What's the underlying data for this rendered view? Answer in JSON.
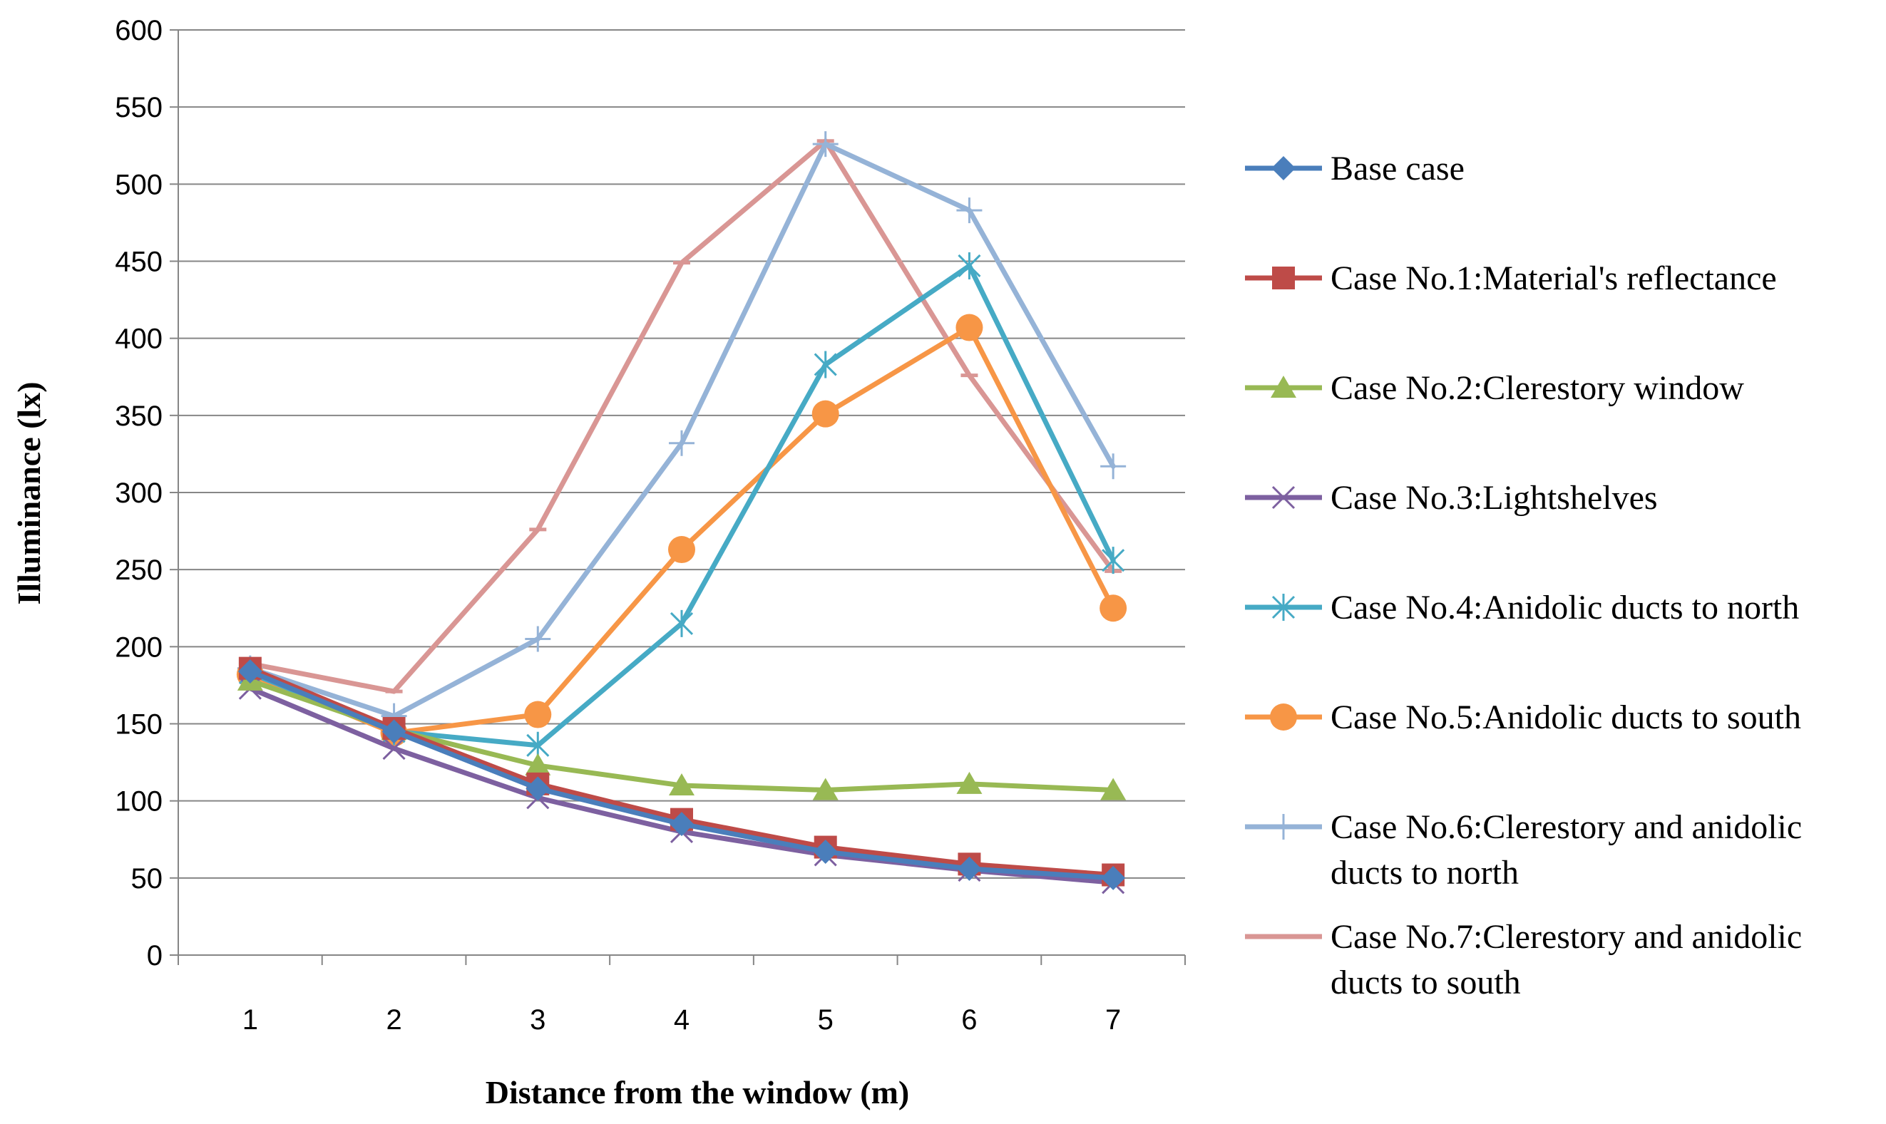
{
  "chart_data": {
    "type": "line",
    "title": "",
    "xlabel": "Distance from the window (m)",
    "ylabel": "Illuminance (lx)",
    "x": [
      1,
      2,
      3,
      4,
      5,
      6,
      7
    ],
    "ylim": [
      0,
      600
    ],
    "yticks": [
      0,
      50,
      100,
      150,
      200,
      250,
      300,
      350,
      400,
      450,
      500,
      550,
      600
    ],
    "grid": true,
    "legend_position": "right",
    "series": [
      {
        "name": "Base case",
        "legend_lines": [
          "Base case"
        ],
        "color": "#4a7ebb",
        "marker": "diamond",
        "values": [
          184,
          145,
          108,
          85,
          67,
          56,
          50
        ]
      },
      {
        "name": "Case No.1:Material's reflectance",
        "legend_lines": [
          "Case No.1:Material's reflectance"
        ],
        "color": "#be4b48",
        "marker": "square",
        "values": [
          186,
          147,
          111,
          88,
          70,
          59,
          52
        ]
      },
      {
        "name": "Case No.2:Clerestory window",
        "legend_lines": [
          "Case No.2:Clerestory window"
        ],
        "color": "#98b954",
        "marker": "triangle",
        "values": [
          178,
          146,
          123,
          110,
          107,
          111,
          107
        ]
      },
      {
        "name": "Case No.3:Lightshelves",
        "legend_lines": [
          "Case No.3:Lightshelves"
        ],
        "color": "#7d60a0",
        "marker": "x",
        "values": [
          173,
          134,
          102,
          80,
          65,
          55,
          47
        ]
      },
      {
        "name": "Case No.4:Anidolic ducts to north",
        "legend_lines": [
          "Case No.4:Anidolic ducts to north"
        ],
        "color": "#46aac5",
        "marker": "star",
        "values": [
          183,
          145,
          136,
          215,
          383,
          447,
          256
        ]
      },
      {
        "name": "Case No.5:Anidolic ducts to south",
        "legend_lines": [
          "Case No.5:Anidolic ducts to south"
        ],
        "color": "#f79646",
        "marker": "circle",
        "values": [
          182,
          144,
          156,
          263,
          351,
          407,
          225
        ]
      },
      {
        "name": "Case No.6:Clerestory and anidolic ducts to north",
        "legend_lines": [
          "Case No.6:Clerestory and anidolic",
          "ducts to north"
        ],
        "color": "#95b3d7",
        "marker": "plus",
        "values": [
          186,
          155,
          205,
          332,
          526,
          483,
          317
        ]
      },
      {
        "name": "Case No.7:Clerestory and anidolic ducts to south",
        "legend_lines": [
          "Case No.7:Clerestory and anidolic",
          "ducts to south"
        ],
        "color": "#d99694",
        "marker": "dash",
        "values": [
          189,
          171,
          276,
          449,
          528,
          376,
          249
        ]
      }
    ]
  }
}
